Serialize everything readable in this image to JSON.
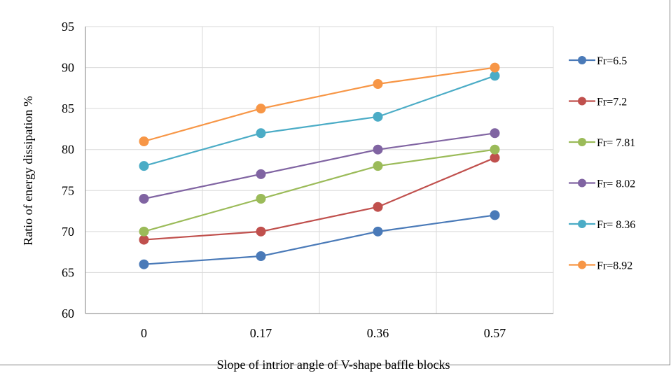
{
  "chart_data": {
    "type": "line",
    "title": "",
    "xlabel": "Slope of  intrior angle  of V-shape baffle blocks",
    "ylabel": "Ratio of energy dissipation %",
    "categories": [
      "0",
      "0.17",
      "0.36",
      "0.57"
    ],
    "ylim": [
      60,
      95
    ],
    "yticks": [
      60,
      65,
      70,
      75,
      80,
      85,
      90,
      95
    ],
    "grid": true,
    "legend_position": "right",
    "series": [
      {
        "name": "Fr=6.5",
        "color": "#4a7ab8",
        "values": [
          66,
          67,
          70,
          72
        ]
      },
      {
        "name": "Fr=7.2",
        "color": "#c0504d",
        "values": [
          69,
          70,
          73,
          79
        ]
      },
      {
        "name": "Fr= 7.81",
        "color": "#9bbb59",
        "values": [
          70,
          74,
          78,
          80
        ]
      },
      {
        "name": "Fr= 8.02",
        "color": "#8064a2",
        "values": [
          74,
          77,
          80,
          82
        ]
      },
      {
        "name": "Fr= 8.36",
        "color": "#4bacc6",
        "values": [
          78,
          82,
          84,
          89
        ]
      },
      {
        "name": "Fr=8.92",
        "color": "#f79646",
        "values": [
          81,
          85,
          88,
          90
        ]
      }
    ]
  }
}
